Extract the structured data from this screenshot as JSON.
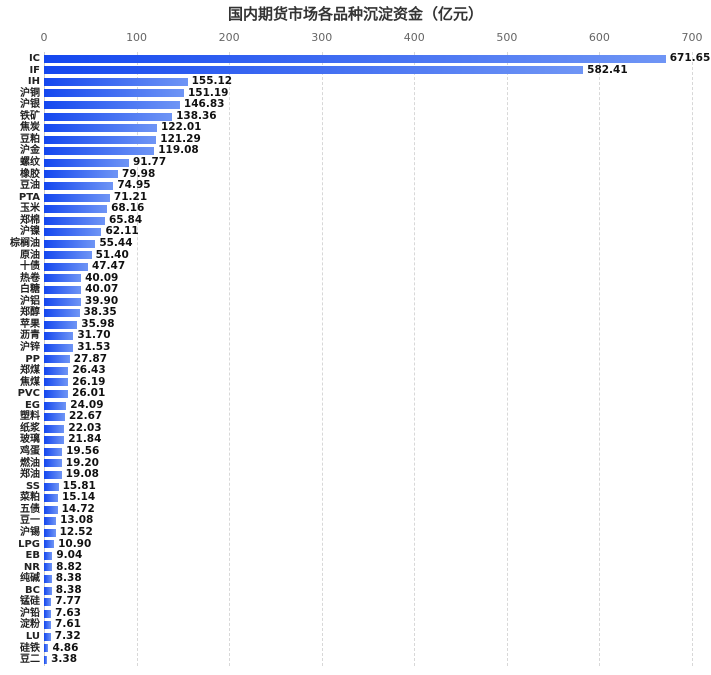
{
  "chart_data": {
    "type": "bar",
    "orientation": "horizontal",
    "title": "国内期货市场各品种沉淀资金（亿元）",
    "xlabel": "",
    "ylabel": "",
    "xlim": [
      0,
      700
    ],
    "x_ticks": [
      0,
      100,
      200,
      300,
      400,
      500,
      600,
      700
    ],
    "grid": true,
    "bar_color_gradient": [
      "#1447ef",
      "#6f95f5"
    ],
    "categories": [
      "IC",
      "IF",
      "IH",
      "沪铜",
      "沪银",
      "铁矿",
      "焦炭",
      "豆粕",
      "沪金",
      "螺纹",
      "橡胶",
      "豆油",
      "PTA",
      "玉米",
      "郑棉",
      "沪镍",
      "棕榈油",
      "原油",
      "十债",
      "热卷",
      "白糖",
      "沪铝",
      "郑醇",
      "苹果",
      "沥青",
      "沪锌",
      "PP",
      "郑煤",
      "焦煤",
      "PVC",
      "EG",
      "塑料",
      "纸浆",
      "玻璃",
      "鸡蛋",
      "燃油",
      "郑油",
      "SS",
      "菜粕",
      "五债",
      "豆一",
      "沪锡",
      "LPG",
      "EB",
      "NR",
      "纯碱",
      "BC",
      "锰硅",
      "沪铅",
      "淀粉",
      "LU",
      "硅铁",
      "豆二"
    ],
    "values": [
      671.65,
      582.41,
      155.12,
      151.19,
      146.83,
      138.36,
      122.01,
      121.29,
      119.08,
      91.77,
      79.98,
      74.95,
      71.21,
      68.16,
      65.84,
      62.11,
      55.44,
      51.4,
      47.47,
      40.09,
      40.07,
      39.9,
      38.35,
      35.98,
      31.7,
      31.53,
      27.87,
      26.43,
      26.19,
      26.01,
      24.09,
      22.67,
      22.03,
      21.84,
      19.56,
      19.2,
      19.08,
      15.81,
      15.14,
      14.72,
      13.08,
      12.52,
      10.9,
      9.04,
      8.82,
      8.38,
      8.38,
      7.77,
      7.63,
      7.61,
      7.32,
      4.86,
      3.38
    ],
    "value_labels": [
      "671.65",
      "582.41",
      "155.12",
      "151.19",
      "146.83",
      "138.36",
      "122.01",
      "121.29",
      "119.08",
      "91.77",
      "79.98",
      "74.95",
      "71.21",
      "68.16",
      "65.84",
      "62.11",
      "55.44",
      "51.40",
      "47.47",
      "40.09",
      "40.07",
      "39.90",
      "38.35",
      "35.98",
      "31.70",
      "31.53",
      "27.87",
      "26.43",
      "26.19",
      "26.01",
      "24.09",
      "22.67",
      "22.03",
      "21.84",
      "19.56",
      "19.20",
      "19.08",
      "15.81",
      "15.14",
      "14.72",
      "13.08",
      "12.52",
      "10.90",
      "9.04",
      "8.82",
      "8.38",
      "8.38",
      "7.77",
      "7.63",
      "7.61",
      "7.32",
      "4.86",
      "3.38"
    ]
  }
}
